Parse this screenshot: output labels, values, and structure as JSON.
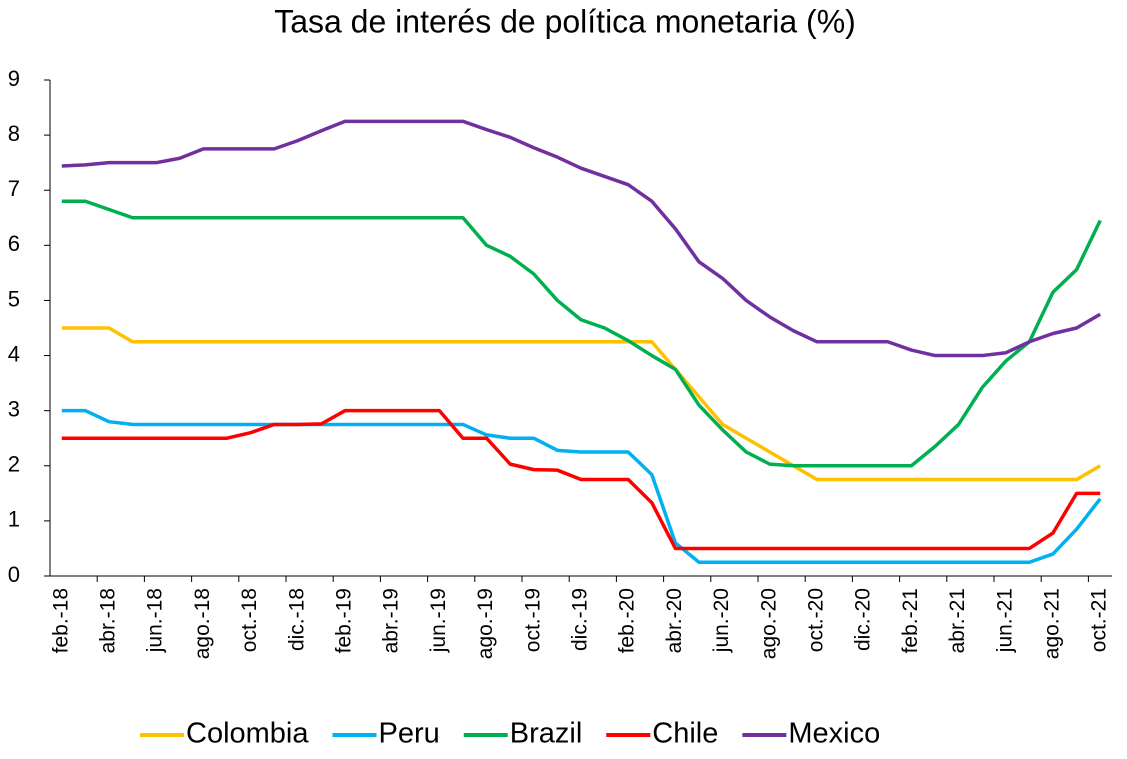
{
  "chart_data": {
    "type": "line",
    "title": "Tasa de interés de política monetaria (%)",
    "categories": [
      "feb.-18",
      null,
      "abr.-18",
      null,
      "jun.-18",
      null,
      "ago.-18",
      null,
      "oct.-18",
      null,
      "dic.-18",
      null,
      "feb.-19",
      null,
      "abr.-19",
      null,
      "jun.-19",
      null,
      "ago.-19",
      null,
      "oct.-19",
      null,
      "dic.-19",
      null,
      "feb.-20",
      null,
      "abr.-20",
      null,
      "jun.-20",
      null,
      "ago.-20",
      null,
      "oct.-20",
      null,
      "dic.-20",
      null,
      "feb.-21",
      null,
      "abr.-21",
      null,
      "jun.-21",
      null,
      "ago.-21",
      null,
      "oct.-21"
    ],
    "series": [
      {
        "name": "Colombia",
        "color": "#ffc000",
        "values": [
          4.5,
          4.5,
          4.5,
          4.25,
          4.25,
          4.25,
          4.25,
          4.25,
          4.25,
          4.25,
          4.25,
          4.25,
          4.25,
          4.25,
          4.25,
          4.25,
          4.25,
          4.25,
          4.25,
          4.25,
          4.25,
          4.25,
          4.25,
          4.25,
          4.25,
          4.25,
          3.75,
          3.25,
          2.75,
          2.5,
          2.25,
          2.0,
          1.75,
          1.75,
          1.75,
          1.75,
          1.75,
          1.75,
          1.75,
          1.75,
          1.75,
          1.75,
          1.75,
          1.75,
          2.0
        ]
      },
      {
        "name": "Peru",
        "color": "#00b0f0",
        "values": [
          3.0,
          3.0,
          2.8,
          2.75,
          2.75,
          2.75,
          2.75,
          2.75,
          2.75,
          2.75,
          2.75,
          2.75,
          2.75,
          2.75,
          2.75,
          2.75,
          2.75,
          2.75,
          2.56,
          2.5,
          2.5,
          2.28,
          2.25,
          2.25,
          2.25,
          1.84,
          0.6,
          0.25,
          0.25,
          0.25,
          0.25,
          0.25,
          0.25,
          0.25,
          0.25,
          0.25,
          0.25,
          0.25,
          0.25,
          0.25,
          0.25,
          0.25,
          0.4,
          0.85,
          1.4
        ]
      },
      {
        "name": "Brazil",
        "color": "#00b050",
        "values": [
          6.8,
          6.8,
          6.65,
          6.5,
          6.5,
          6.5,
          6.5,
          6.5,
          6.5,
          6.5,
          6.5,
          6.5,
          6.5,
          6.5,
          6.5,
          6.5,
          6.5,
          6.5,
          6.0,
          5.8,
          5.48,
          5.0,
          4.65,
          4.5,
          4.27,
          4.0,
          3.75,
          3.1,
          2.65,
          2.25,
          2.03,
          2.0,
          2.0,
          2.0,
          2.0,
          2.0,
          2.0,
          2.35,
          2.75,
          3.42,
          3.9,
          4.25,
          5.15,
          5.56,
          6.45
        ]
      },
      {
        "name": "Chile",
        "color": "#ff0000",
        "values": [
          2.5,
          2.5,
          2.5,
          2.5,
          2.5,
          2.5,
          2.5,
          2.5,
          2.6,
          2.75,
          2.75,
          2.76,
          3.0,
          3.0,
          3.0,
          3.0,
          3.0,
          2.5,
          2.5,
          2.03,
          1.93,
          1.92,
          1.75,
          1.75,
          1.75,
          1.33,
          0.5,
          0.5,
          0.5,
          0.5,
          0.5,
          0.5,
          0.5,
          0.5,
          0.5,
          0.5,
          0.5,
          0.5,
          0.5,
          0.5,
          0.5,
          0.5,
          0.78,
          1.5,
          1.5
        ]
      },
      {
        "name": "Mexico",
        "color": "#7030a0",
        "values": [
          7.44,
          7.46,
          7.5,
          7.5,
          7.5,
          7.58,
          7.75,
          7.75,
          7.75,
          7.75,
          7.9,
          8.08,
          8.25,
          8.25,
          8.25,
          8.25,
          8.25,
          8.25,
          8.1,
          7.96,
          7.77,
          7.6,
          7.4,
          7.25,
          7.1,
          6.8,
          6.3,
          5.7,
          5.4,
          5.0,
          4.7,
          4.45,
          4.25,
          4.25,
          4.25,
          4.25,
          4.1,
          4.0,
          4.0,
          4.0,
          4.05,
          4.25,
          4.4,
          4.5,
          4.75
        ]
      }
    ],
    "ylim": [
      0,
      9
    ],
    "yticks": [
      0,
      1,
      2,
      3,
      4,
      5,
      6,
      7,
      8,
      9
    ],
    "grid": false,
    "legend": "bottom"
  }
}
